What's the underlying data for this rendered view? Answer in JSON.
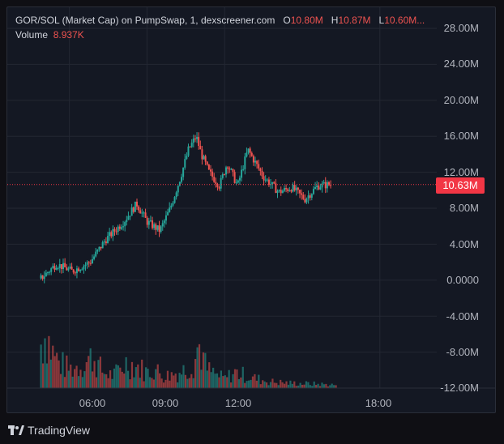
{
  "legend": {
    "title": "GOR/SOL (Market Cap) on PumpSwap, 1, dexscreener.com",
    "o_label": "O",
    "o_value": "10.80M",
    "h_label": "H",
    "h_value": "10.87M",
    "l_label": "L",
    "l_value": "10.60M...",
    "volume_label": "Volume",
    "volume_value": "8.937K"
  },
  "price_tag": "10.63M",
  "footer": {
    "brand": "TradingView"
  },
  "colors": {
    "up": "#26a69a",
    "down": "#ef5350",
    "background": "#141823",
    "price_tag": "#f23645"
  },
  "chart_data": {
    "type": "candlestick",
    "y_axis": {
      "tick_labels": [
        "28.00M",
        "24.00M",
        "20.00M",
        "16.00M",
        "12.00M",
        "8.00M",
        "4.00M",
        "0.0000",
        "-4.00M",
        "-8.00M",
        "-12.00M"
      ],
      "ylim_millions": [
        -12,
        28
      ]
    },
    "x_axis": {
      "tick_labels": [
        "06:00",
        "09:00",
        "12:00",
        "18:00"
      ],
      "range_hours": [
        3.6,
        20.2
      ]
    },
    "last_price_millions": 10.63,
    "price_series": {
      "name": "Market Cap",
      "x_hours": [
        4.9,
        5.5,
        6.1,
        6.8,
        7.4,
        8.1,
        8.6,
        9.0,
        9.5,
        9.9,
        10.3,
        10.6,
        10.9,
        11.1,
        11.4,
        11.8,
        12.1,
        12.5,
        12.9,
        13.5,
        14.1,
        14.6,
        15.1,
        15.6,
        16.1
      ],
      "close_millions": [
        0.2,
        1.8,
        1.0,
        2.0,
        4.5,
        6.5,
        8.5,
        6.5,
        5.5,
        8.0,
        11.5,
        14.5,
        16.0,
        14.0,
        12.0,
        10.5,
        13.0,
        10.5,
        14.5,
        11.5,
        9.8,
        10.3,
        9.0,
        10.5,
        10.63
      ]
    },
    "volume_series": {
      "name": "Volume",
      "x_hours": [
        4.9,
        5.1,
        5.3,
        5.6,
        6.0,
        6.4,
        6.9,
        7.3,
        7.7,
        8.2,
        8.6,
        9.0,
        9.3,
        9.6,
        9.8,
        10.2,
        10.5,
        10.8,
        11.0,
        11.3,
        11.7,
        12.0,
        12.4,
        12.8,
        13.2,
        13.8,
        14.5,
        15.2,
        15.8,
        16.3
      ],
      "values_millions": [
        7.0,
        9.0,
        6.0,
        4.0,
        3.0,
        3.5,
        5.0,
        2.5,
        2.0,
        4.0,
        3.5,
        2.5,
        3.0,
        2.0,
        2.0,
        2.5,
        3.0,
        4.0,
        7.0,
        3.0,
        2.0,
        1.5,
        2.5,
        2.0,
        1.5,
        1.0,
        0.8,
        0.7,
        0.6,
        0.5
      ]
    }
  }
}
